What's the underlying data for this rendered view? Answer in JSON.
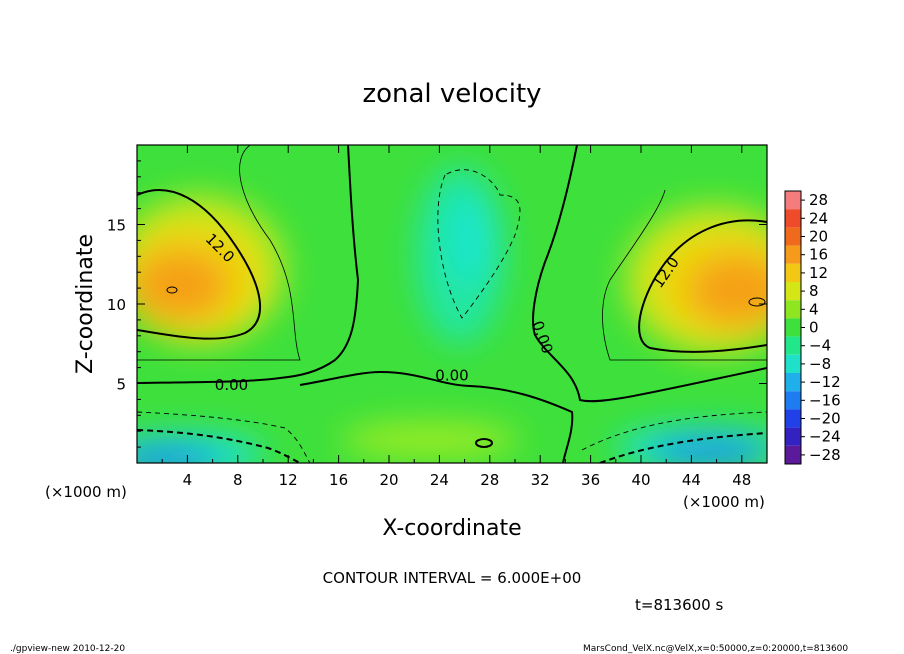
{
  "chart_data": {
    "type": "heatmap",
    "title": "zonal velocity",
    "xlabel": "X-coordinate",
    "ylabel": "Z-coordinate",
    "x_unit": "(×1000 m)",
    "y_unit": "(×1000 m)",
    "xlim": [
      0,
      50
    ],
    "ylim": [
      0,
      20
    ],
    "x_ticks": [
      "4",
      "8",
      "12",
      "16",
      "20",
      "24",
      "28",
      "32",
      "36",
      "40",
      "44",
      "48"
    ],
    "y_ticks": [
      "5",
      "10",
      "15"
    ],
    "colorbar_labels": [
      "28",
      "24",
      "20",
      "16",
      "12",
      "8",
      "4",
      "0",
      "-4",
      "-8",
      "-12",
      "-16",
      "-20",
      "-24",
      "-28"
    ],
    "contour_labels": [
      {
        "text": "12.0",
        "x": 6.3,
        "z": 13.3
      },
      {
        "text": "12.0",
        "x": 42.3,
        "z": 11.8
      },
      {
        "text": "0.00",
        "x": 7.5,
        "z": 4.6
      },
      {
        "text": "0.00",
        "x": 25.0,
        "z": 5.2
      },
      {
        "text": "0.00",
        "x": 31.8,
        "z": 7.8
      }
    ],
    "contour_interval": "CONTOUR INTERVAL = 6.000E+00",
    "time_label": "t=813600 s",
    "features": [
      {
        "name": "left jet max",
        "x": 3.0,
        "z": 10.8,
        "value": 16
      },
      {
        "name": "right jet max",
        "x": 47.5,
        "z": 10.2,
        "value": 16
      },
      {
        "name": "upper easterly core",
        "x": 26.5,
        "z": 13.5,
        "value": -6
      },
      {
        "name": "lower left easterly",
        "x": 4.0,
        "z": 0.8,
        "value": -12
      },
      {
        "name": "lower right easterly",
        "x": 45.5,
        "z": 1.3,
        "value": -12
      }
    ]
  },
  "footer": {
    "left": "./gpview-new   2010-12-20",
    "right": "MarsCond_VelX.nc@VelX,x=0:50000,z=0:20000,t=813600"
  }
}
